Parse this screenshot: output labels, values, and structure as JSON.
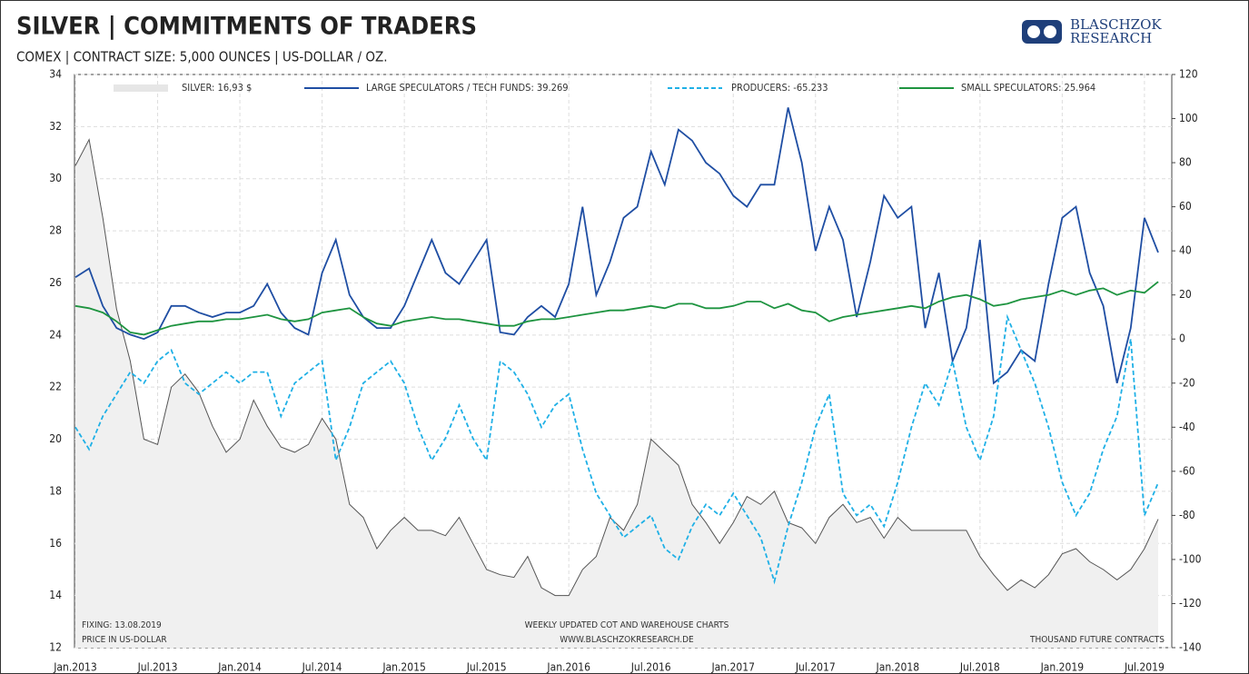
{
  "chart_data": {
    "type": "line",
    "title": "SILVER | COMMITMENTS OF TRADERS",
    "subtitle": "COMEX | CONTRACT SIZE: 5,000 OUNCES | US-DOLLAR / OZ.",
    "logo": "BLASCHZOK RESEARCH",
    "notes": [
      "FIXING: 13.08.2019",
      "PRICE IN US-DOLLAR",
      "WEEKLY UPDATED COT AND WAREHOUSE CHARTS",
      "WWW.BLASCHZOKRESEARCH.DE",
      "THOUSAND FUTURE CONTRACTS"
    ],
    "x": [
      "2013-01",
      "2013-02",
      "2013-03",
      "2013-04",
      "2013-05",
      "2013-06",
      "2013-07",
      "2013-08",
      "2013-09",
      "2013-10",
      "2013-11",
      "2013-12",
      "2014-01",
      "2014-02",
      "2014-03",
      "2014-04",
      "2014-05",
      "2014-06",
      "2014-07",
      "2014-08",
      "2014-09",
      "2014-10",
      "2014-11",
      "2014-12",
      "2015-01",
      "2015-02",
      "2015-03",
      "2015-04",
      "2015-05",
      "2015-06",
      "2015-07",
      "2015-08",
      "2015-09",
      "2015-10",
      "2015-11",
      "2015-12",
      "2016-01",
      "2016-02",
      "2016-03",
      "2016-04",
      "2016-05",
      "2016-06",
      "2016-07",
      "2016-08",
      "2016-09",
      "2016-10",
      "2016-11",
      "2016-12",
      "2017-01",
      "2017-02",
      "2017-03",
      "2017-04",
      "2017-05",
      "2017-06",
      "2017-07",
      "2017-08",
      "2017-09",
      "2017-10",
      "2017-11",
      "2017-12",
      "2018-01",
      "2018-02",
      "2018-03",
      "2018-04",
      "2018-05",
      "2018-06",
      "2018-07",
      "2018-08",
      "2018-09",
      "2018-10",
      "2018-11",
      "2018-12",
      "2019-01",
      "2019-02",
      "2019-03",
      "2019-04",
      "2019-05",
      "2019-06",
      "2019-07",
      "2019-08"
    ],
    "xticks": [
      {
        "value": "2013-01",
        "label": "Jan.2013"
      },
      {
        "value": "2013-07",
        "label": "Jul.2013"
      },
      {
        "value": "2014-01",
        "label": "Jan.2014"
      },
      {
        "value": "2014-07",
        "label": "Jul.2014"
      },
      {
        "value": "2015-01",
        "label": "Jan.2015"
      },
      {
        "value": "2015-07",
        "label": "Jul.2015"
      },
      {
        "value": "2016-01",
        "label": "Jan.2016"
      },
      {
        "value": "2016-07",
        "label": "Jul.2016"
      },
      {
        "value": "2017-01",
        "label": "Jan.2017"
      },
      {
        "value": "2017-07",
        "label": "Jul.2017"
      },
      {
        "value": "2018-01",
        "label": "Jan.2018"
      },
      {
        "value": "2018-07",
        "label": "Jul.2018"
      },
      {
        "value": "2019-01",
        "label": "Jan.2019"
      },
      {
        "value": "2019-07",
        "label": "Jul.2019"
      }
    ],
    "ylim": [
      12,
      34
    ],
    "yticks": [
      12,
      14,
      16,
      18,
      20,
      22,
      24,
      26,
      28,
      30,
      32,
      34
    ],
    "y2lim": [
      -140,
      120
    ],
    "y2ticks": [
      -140,
      -120,
      -100,
      -80,
      -60,
      -40,
      -20,
      0,
      20,
      40,
      60,
      80,
      100,
      120
    ],
    "grid": true,
    "series": [
      {
        "name": "SILVER: 16,93 $",
        "color": "#555555",
        "fill": "#f0f0f0",
        "style": "area",
        "axis": "y",
        "values": [
          30.5,
          31.5,
          28.5,
          25,
          23,
          20,
          19.8,
          22,
          22.5,
          21.8,
          20.5,
          19.5,
          20,
          21.5,
          20.5,
          19.7,
          19.5,
          19.8,
          20.8,
          20,
          17.5,
          17,
          15.8,
          16.5,
          17,
          16.5,
          16.5,
          16.3,
          17,
          16,
          15,
          14.8,
          14.7,
          15.5,
          14.3,
          14,
          14,
          15,
          15.5,
          17,
          16.5,
          17.5,
          20,
          19.5,
          19,
          17.5,
          16.8,
          16,
          16.8,
          17.8,
          17.5,
          18,
          16.8,
          16.6,
          16,
          17,
          17.5,
          16.8,
          17,
          16.2,
          17,
          16.5,
          16.5,
          16.5,
          16.5,
          16.5,
          15.5,
          14.8,
          14.2,
          14.6,
          14.3,
          14.8,
          15.6,
          15.8,
          15.3,
          15,
          14.6,
          15,
          15.8,
          16.93
        ]
      },
      {
        "name": "LARGE SPECULATORS / TECH FUNDS: 39.269",
        "color": "#1f4ea3",
        "style": "solid",
        "axis": "y2",
        "values": [
          28,
          32,
          15,
          5,
          2,
          0,
          3,
          15,
          15,
          12,
          10,
          12,
          12,
          15,
          25,
          12,
          5,
          2,
          30,
          45,
          20,
          10,
          5,
          5,
          15,
          30,
          45,
          30,
          25,
          35,
          45,
          3,
          2,
          10,
          15,
          10,
          25,
          60,
          20,
          35,
          55,
          60,
          85,
          70,
          95,
          90,
          80,
          75,
          65,
          60,
          70,
          70,
          105,
          80,
          40,
          60,
          45,
          10,
          35,
          65,
          55,
          60,
          5,
          30,
          -10,
          5,
          45,
          -20,
          -15,
          -5,
          -10,
          25,
          55,
          60,
          30,
          15,
          -20,
          5,
          55,
          39.269
        ]
      },
      {
        "name": "PRODUCERS: -65.233",
        "color": "#1fb0e6",
        "style": "dashed",
        "axis": "y2",
        "values": [
          -40,
          -50,
          -35,
          -25,
          -15,
          -20,
          -10,
          -5,
          -20,
          -25,
          -20,
          -15,
          -20,
          -15,
          -15,
          -35,
          -20,
          -15,
          -10,
          -55,
          -40,
          -20,
          -15,
          -10,
          -20,
          -40,
          -55,
          -45,
          -30,
          -45,
          -55,
          -10,
          -15,
          -25,
          -40,
          -30,
          -25,
          -50,
          -70,
          -80,
          -90,
          -85,
          -80,
          -95,
          -100,
          -85,
          -75,
          -80,
          -70,
          -80,
          -90,
          -110,
          -85,
          -65,
          -40,
          -25,
          -70,
          -80,
          -75,
          -85,
          -65,
          -40,
          -20,
          -30,
          -10,
          -40,
          -55,
          -35,
          10,
          -5,
          -20,
          -40,
          -65,
          -80,
          -70,
          -50,
          -35,
          0,
          -80,
          -65.233
        ]
      },
      {
        "name": "SMALL SPECULATORS: 25.964",
        "color": "#1e9440",
        "style": "solid",
        "axis": "y2",
        "values": [
          15,
          14,
          12,
          8,
          3,
          2,
          4,
          6,
          7,
          8,
          8,
          9,
          9,
          10,
          11,
          9,
          8,
          9,
          12,
          13,
          14,
          10,
          7,
          6,
          8,
          9,
          10,
          9,
          9,
          8,
          7,
          6,
          6,
          8,
          9,
          9,
          10,
          11,
          12,
          13,
          13,
          14,
          15,
          14,
          16,
          16,
          14,
          14,
          15,
          17,
          17,
          14,
          16,
          13,
          12,
          8,
          10,
          11,
          12,
          13,
          14,
          15,
          14,
          17,
          19,
          20,
          18,
          15,
          16,
          18,
          19,
          20,
          22,
          20,
          22,
          23,
          20,
          22,
          21,
          25.964
        ]
      }
    ]
  }
}
